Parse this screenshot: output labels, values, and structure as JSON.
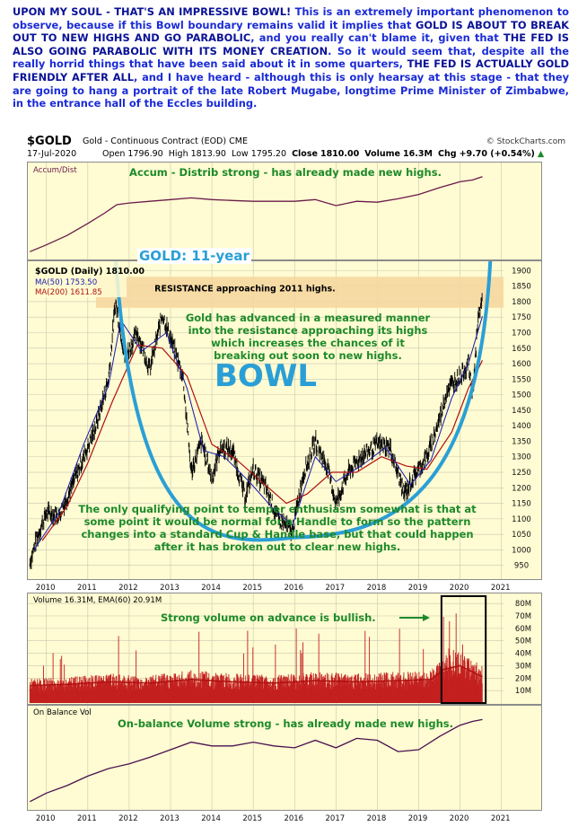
{
  "commentary": {
    "headline": "UPON MY SOUL - THAT'S AN IMPRESSIVE BOWL!",
    "seg1": " This is an extremely important phenomenon to observe, because if this Bowl boundary remains valid it implies that ",
    "seg2": "GOLD IS ABOUT TO BREAK OUT TO NEW HIGHS AND GO PARABOLIC",
    "seg3": ", and you really can't blame it, given that ",
    "seg4": "THE FED IS ALSO GOING PARABOLIC WITH ITS MONEY CREATION",
    "seg5": ". So it would seem that, despite all the really horrid things that have been said about it in some quarters, ",
    "seg6": "THE FED IS ACTUALLY GOLD FRIENDLY AFTER ALL",
    "seg7": ", and I have heard - although this is only hearsay at this stage - that they are going to hang a portrait of the late Robert Mugabe, longtime Prime Minister of Zimbabwe, in the entrance hall of the Eccles building."
  },
  "header": {
    "symbol": "$GOLD",
    "description": "Gold - Continuous Contract (EOD)",
    "exchange": "CME",
    "brand": "© StockCharts.com",
    "date": "17-Jul-2020",
    "open_label": "Open",
    "open": "1796.90",
    "high_label": "High",
    "high": "1813.90",
    "low_label": "Low",
    "low": "1795.20",
    "close_label": "Close",
    "close": "1810.00",
    "volume_label": "Volume",
    "volume": "16.3M",
    "chg_label": "Chg",
    "chg": "+9.70 (+0.54%)",
    "chg_icon": "up-arrow-icon"
  },
  "colors": {
    "panel_bg": "#fffbd2",
    "price_bars": "#000000",
    "ma50": "#1a1aa8",
    "ma200": "#b01010",
    "bowl": "#2a9fd6",
    "resistance_band": "#f6d7a0",
    "volume_bars": "#c42020",
    "annotation_green": "#1d8a2a",
    "annotation_blue": "#2a9fd6"
  },
  "chart_data": [
    {
      "panel": "accum_dist",
      "type": "line",
      "legend": "Accum/Dist",
      "annotation": "Accum - Distrib strong - has already made new highs.",
      "x": [
        2009.6,
        2010.0,
        2010.5,
        2011.0,
        2011.4,
        2011.7,
        2012.0,
        2012.5,
        2013.0,
        2013.5,
        2014.0,
        2014.5,
        2015.0,
        2015.5,
        2016.0,
        2016.5,
        2017.0,
        2017.5,
        2018.0,
        2018.5,
        2019.0,
        2019.5,
        2020.0,
        2020.3,
        2020.54
      ],
      "values": [
        5,
        13,
        24,
        38,
        50,
        60,
        62,
        64,
        66,
        68,
        66,
        65,
        64,
        64,
        64,
        66,
        59,
        64,
        63,
        67,
        72,
        80,
        87,
        89,
        93
      ]
    },
    {
      "panel": "price",
      "type": "line",
      "title": "GOLD: 11-year",
      "legend": [
        "$GOLD (Daily) 1810.00",
        "MA(50) 1753.50",
        "MA(200) 1611.85"
      ],
      "y_ticks": [
        950,
        1000,
        1050,
        1100,
        1150,
        1200,
        1250,
        1300,
        1350,
        1400,
        1450,
        1500,
        1550,
        1600,
        1650,
        1700,
        1750,
        1800,
        1850,
        1900
      ],
      "x_ticks": [
        "2010",
        "2011",
        "2012",
        "2013",
        "2014",
        "2015",
        "2016",
        "2017",
        "2018",
        "2019",
        "2020",
        "2021"
      ],
      "ylim": [
        900,
        1930
      ],
      "series": [
        {
          "name": "$GOLD (Daily)",
          "x": [
            2009.6,
            2009.8,
            2010.0,
            2010.3,
            2010.6,
            2010.9,
            2011.2,
            2011.5,
            2011.67,
            2011.9,
            2012.2,
            2012.5,
            2012.8,
            2013.0,
            2013.3,
            2013.5,
            2013.75,
            2014.0,
            2014.2,
            2014.5,
            2014.8,
            2015.0,
            2015.3,
            2015.6,
            2015.95,
            2016.2,
            2016.5,
            2016.8,
            2017.0,
            2017.3,
            2017.6,
            2018.0,
            2018.3,
            2018.65,
            2018.9,
            2019.2,
            2019.5,
            2019.7,
            2020.0,
            2020.2,
            2020.3,
            2020.45,
            2020.54
          ],
          "values": [
            960,
            1050,
            1120,
            1110,
            1200,
            1300,
            1400,
            1550,
            1800,
            1620,
            1700,
            1580,
            1760,
            1680,
            1560,
            1250,
            1350,
            1230,
            1330,
            1320,
            1170,
            1260,
            1200,
            1100,
            1060,
            1240,
            1350,
            1260,
            1150,
            1250,
            1300,
            1340,
            1330,
            1180,
            1240,
            1300,
            1420,
            1520,
            1560,
            1600,
            1500,
            1760,
            1810
          ]
        },
        {
          "name": "MA(50)",
          "x": [
            2009.7,
            2010.3,
            2010.9,
            2011.5,
            2011.8,
            2012.3,
            2012.9,
            2013.4,
            2013.8,
            2014.3,
            2014.9,
            2015.5,
            2015.95,
            2016.5,
            2017.0,
            2017.6,
            2018.2,
            2018.8,
            2019.3,
            2019.8,
            2020.2,
            2020.54
          ],
          "values": [
            1000,
            1120,
            1340,
            1530,
            1740,
            1640,
            1700,
            1520,
            1320,
            1300,
            1220,
            1130,
            1080,
            1300,
            1220,
            1270,
            1330,
            1210,
            1290,
            1490,
            1600,
            1753
          ]
        },
        {
          "name": "MA(200)",
          "x": [
            2009.9,
            2010.5,
            2011.0,
            2011.6,
            2012.2,
            2012.8,
            2013.4,
            2014.0,
            2014.6,
            2015.2,
            2015.8,
            2016.3,
            2016.9,
            2017.5,
            2018.1,
            2018.7,
            2019.2,
            2019.8,
            2020.2,
            2020.54
          ],
          "values": [
            1030,
            1140,
            1280,
            1480,
            1660,
            1650,
            1560,
            1340,
            1290,
            1220,
            1150,
            1180,
            1250,
            1250,
            1300,
            1270,
            1260,
            1380,
            1520,
            1611
          ]
        }
      ],
      "bowl_label": "BOWL",
      "resistance_label": "RESISTANCE approaching 2011 highs.",
      "resistance_zone": [
        1780,
        1880
      ],
      "note_top": "Gold has advanced in a measured manner into the resistance approaching its highs which increases the chances of it breaking out soon to new highs.",
      "note_bottom": "The only qualifying point to temper enthusiasm somewhat is that at some point it would be normal for a Handle to form so the pattern changes into a standard Cup & Handle base, but that could happen after it has broken out to clear new highs."
    },
    {
      "panel": "volume",
      "type": "bar",
      "legend": "Volume 16.31M, EMA(60) 20.91M",
      "annotation": "Strong volume on advance is  bullish.",
      "y_ticks": [
        "10M",
        "20M",
        "30M",
        "40M",
        "50M",
        "60M",
        "70M",
        "80M"
      ],
      "ylim": [
        0,
        83
      ],
      "ema_x": [
        2009.6,
        2010.5,
        2011.5,
        2012.5,
        2013.5,
        2014.5,
        2015.5,
        2016.5,
        2017.5,
        2018.5,
        2019.3,
        2019.6,
        2020.0,
        2020.3,
        2020.54
      ],
      "ema_values": [
        14,
        15,
        17,
        16,
        19,
        17,
        16,
        18,
        17,
        18,
        19,
        27,
        30,
        25,
        21
      ]
    },
    {
      "panel": "obv",
      "type": "line",
      "legend": "On Balance Vol",
      "annotation": "On-balance Volume strong - has already made new highs.",
      "x_ticks": [
        "2010",
        "2011",
        "2012",
        "2013",
        "2014",
        "2015",
        "2016",
        "2017",
        "2018",
        "2019",
        "2020",
        "2021"
      ],
      "x": [
        2009.6,
        2010.0,
        2010.5,
        2011.0,
        2011.5,
        2012.0,
        2012.5,
        2013.0,
        2013.5,
        2014.0,
        2014.5,
        2015.0,
        2015.5,
        2016.0,
        2016.5,
        2017.0,
        2017.5,
        2018.0,
        2018.5,
        2019.0,
        2019.5,
        2020.0,
        2020.3,
        2020.54
      ],
      "values": [
        5,
        14,
        22,
        32,
        40,
        45,
        52,
        60,
        68,
        64,
        64,
        68,
        64,
        62,
        70,
        62,
        72,
        70,
        58,
        60,
        74,
        86,
        90,
        92
      ]
    }
  ]
}
